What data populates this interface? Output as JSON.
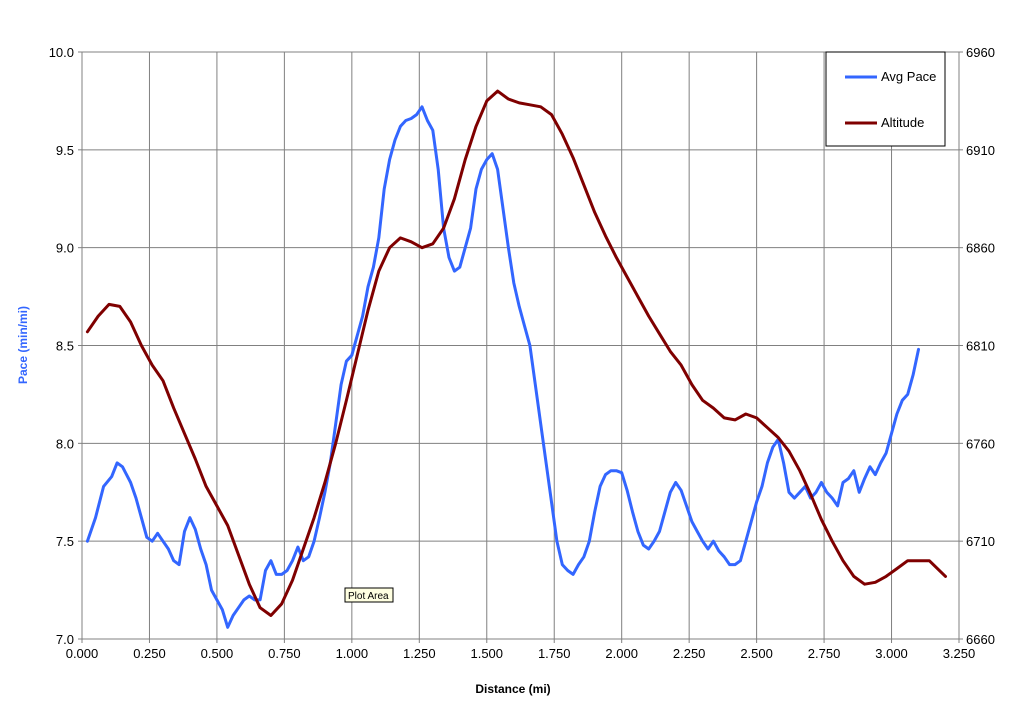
{
  "chart_data": {
    "type": "line",
    "xlabel": "Distance (mi)",
    "ylabel": "Pace (min/mi)",
    "y2label": "",
    "xlim": [
      0,
      3.25
    ],
    "ylim": [
      7.0,
      10.0
    ],
    "y2lim": [
      6660,
      6960
    ],
    "x_ticks": [
      "0.000",
      "0.250",
      "0.500",
      "0.750",
      "1.000",
      "1.250",
      "1.500",
      "1.750",
      "2.000",
      "2.250",
      "2.500",
      "2.750",
      "3.000",
      "3.250"
    ],
    "y_ticks": [
      "7.0",
      "7.5",
      "8.0",
      "8.5",
      "9.0",
      "9.5",
      "10.0"
    ],
    "y2_ticks": [
      "6660",
      "6710",
      "6760",
      "6810",
      "6860",
      "6910",
      "6960"
    ],
    "grid": true,
    "legend_position": "top-right",
    "tooltip": "Plot Area",
    "series": [
      {
        "name": "Avg Pace",
        "axis": "left",
        "color": "#3366ff",
        "points": [
          [
            0.02,
            7.5
          ],
          [
            0.05,
            7.62
          ],
          [
            0.08,
            7.78
          ],
          [
            0.11,
            7.83
          ],
          [
            0.13,
            7.9
          ],
          [
            0.15,
            7.88
          ],
          [
            0.18,
            7.8
          ],
          [
            0.2,
            7.72
          ],
          [
            0.22,
            7.62
          ],
          [
            0.24,
            7.52
          ],
          [
            0.26,
            7.5
          ],
          [
            0.28,
            7.54
          ],
          [
            0.3,
            7.5
          ],
          [
            0.32,
            7.46
          ],
          [
            0.34,
            7.4
          ],
          [
            0.36,
            7.38
          ],
          [
            0.38,
            7.55
          ],
          [
            0.4,
            7.62
          ],
          [
            0.42,
            7.56
          ],
          [
            0.44,
            7.46
          ],
          [
            0.46,
            7.38
          ],
          [
            0.48,
            7.25
          ],
          [
            0.5,
            7.2
          ],
          [
            0.52,
            7.15
          ],
          [
            0.54,
            7.06
          ],
          [
            0.56,
            7.12
          ],
          [
            0.58,
            7.16
          ],
          [
            0.6,
            7.2
          ],
          [
            0.62,
            7.22
          ],
          [
            0.64,
            7.2
          ],
          [
            0.66,
            7.2
          ],
          [
            0.68,
            7.35
          ],
          [
            0.7,
            7.4
          ],
          [
            0.72,
            7.33
          ],
          [
            0.74,
            7.33
          ],
          [
            0.76,
            7.35
          ],
          [
            0.78,
            7.4
          ],
          [
            0.8,
            7.47
          ],
          [
            0.82,
            7.4
          ],
          [
            0.84,
            7.42
          ],
          [
            0.86,
            7.5
          ],
          [
            0.88,
            7.62
          ],
          [
            0.9,
            7.75
          ],
          [
            0.92,
            7.9
          ],
          [
            0.94,
            8.1
          ],
          [
            0.96,
            8.3
          ],
          [
            0.98,
            8.42
          ],
          [
            1.0,
            8.45
          ],
          [
            1.02,
            8.55
          ],
          [
            1.04,
            8.65
          ],
          [
            1.06,
            8.8
          ],
          [
            1.08,
            8.9
          ],
          [
            1.1,
            9.05
          ],
          [
            1.12,
            9.3
          ],
          [
            1.14,
            9.45
          ],
          [
            1.16,
            9.55
          ],
          [
            1.18,
            9.62
          ],
          [
            1.2,
            9.65
          ],
          [
            1.22,
            9.66
          ],
          [
            1.24,
            9.68
          ],
          [
            1.26,
            9.72
          ],
          [
            1.28,
            9.65
          ],
          [
            1.3,
            9.6
          ],
          [
            1.32,
            9.4
          ],
          [
            1.34,
            9.1
          ],
          [
            1.36,
            8.95
          ],
          [
            1.38,
            8.88
          ],
          [
            1.4,
            8.9
          ],
          [
            1.42,
            9.0
          ],
          [
            1.44,
            9.1
          ],
          [
            1.46,
            9.3
          ],
          [
            1.48,
            9.4
          ],
          [
            1.5,
            9.45
          ],
          [
            1.52,
            9.48
          ],
          [
            1.54,
            9.4
          ],
          [
            1.56,
            9.2
          ],
          [
            1.58,
            9.0
          ],
          [
            1.6,
            8.82
          ],
          [
            1.62,
            8.7
          ],
          [
            1.64,
            8.6
          ],
          [
            1.66,
            8.5
          ],
          [
            1.68,
            8.3
          ],
          [
            1.7,
            8.1
          ],
          [
            1.72,
            7.9
          ],
          [
            1.74,
            7.7
          ],
          [
            1.76,
            7.5
          ],
          [
            1.78,
            7.38
          ],
          [
            1.8,
            7.35
          ],
          [
            1.82,
            7.33
          ],
          [
            1.84,
            7.38
          ],
          [
            1.86,
            7.42
          ],
          [
            1.88,
            7.5
          ],
          [
            1.9,
            7.65
          ],
          [
            1.92,
            7.78
          ],
          [
            1.94,
            7.84
          ],
          [
            1.96,
            7.86
          ],
          [
            1.98,
            7.86
          ],
          [
            2.0,
            7.85
          ],
          [
            2.02,
            7.76
          ],
          [
            2.04,
            7.65
          ],
          [
            2.06,
            7.55
          ],
          [
            2.08,
            7.48
          ],
          [
            2.1,
            7.46
          ],
          [
            2.12,
            7.5
          ],
          [
            2.14,
            7.55
          ],
          [
            2.16,
            7.65
          ],
          [
            2.18,
            7.75
          ],
          [
            2.2,
            7.8
          ],
          [
            2.22,
            7.76
          ],
          [
            2.24,
            7.68
          ],
          [
            2.26,
            7.6
          ],
          [
            2.28,
            7.55
          ],
          [
            2.3,
            7.5
          ],
          [
            2.32,
            7.46
          ],
          [
            2.34,
            7.5
          ],
          [
            2.36,
            7.45
          ],
          [
            2.38,
            7.42
          ],
          [
            2.4,
            7.38
          ],
          [
            2.42,
            7.38
          ],
          [
            2.44,
            7.4
          ],
          [
            2.46,
            7.5
          ],
          [
            2.48,
            7.6
          ],
          [
            2.5,
            7.7
          ],
          [
            2.52,
            7.78
          ],
          [
            2.54,
            7.9
          ],
          [
            2.56,
            7.98
          ],
          [
            2.58,
            8.02
          ],
          [
            2.6,
            7.9
          ],
          [
            2.62,
            7.75
          ],
          [
            2.64,
            7.72
          ],
          [
            2.66,
            7.75
          ],
          [
            2.68,
            7.78
          ],
          [
            2.7,
            7.72
          ],
          [
            2.72,
            7.75
          ],
          [
            2.74,
            7.8
          ],
          [
            2.76,
            7.75
          ],
          [
            2.78,
            7.72
          ],
          [
            2.8,
            7.68
          ],
          [
            2.82,
            7.8
          ],
          [
            2.84,
            7.82
          ],
          [
            2.86,
            7.86
          ],
          [
            2.88,
            7.75
          ],
          [
            2.9,
            7.82
          ],
          [
            2.92,
            7.88
          ],
          [
            2.94,
            7.84
          ],
          [
            2.96,
            7.9
          ],
          [
            2.98,
            7.95
          ],
          [
            3.0,
            8.05
          ],
          [
            3.02,
            8.15
          ],
          [
            3.04,
            8.22
          ],
          [
            3.06,
            8.25
          ],
          [
            3.08,
            8.35
          ],
          [
            3.1,
            8.48
          ]
        ]
      },
      {
        "name": "Altitude",
        "axis": "right",
        "color": "#7f0000",
        "points": [
          [
            0.02,
            6817
          ],
          [
            0.06,
            6825
          ],
          [
            0.1,
            6831
          ],
          [
            0.14,
            6830
          ],
          [
            0.18,
            6822
          ],
          [
            0.22,
            6810
          ],
          [
            0.26,
            6800
          ],
          [
            0.3,
            6792
          ],
          [
            0.34,
            6778
          ],
          [
            0.38,
            6765
          ],
          [
            0.42,
            6752
          ],
          [
            0.46,
            6738
          ],
          [
            0.5,
            6728
          ],
          [
            0.54,
            6718
          ],
          [
            0.58,
            6703
          ],
          [
            0.62,
            6688
          ],
          [
            0.66,
            6676
          ],
          [
            0.7,
            6672
          ],
          [
            0.74,
            6678
          ],
          [
            0.78,
            6690
          ],
          [
            0.82,
            6706
          ],
          [
            0.86,
            6722
          ],
          [
            0.9,
            6740
          ],
          [
            0.94,
            6760
          ],
          [
            0.98,
            6782
          ],
          [
            1.02,
            6805
          ],
          [
            1.06,
            6828
          ],
          [
            1.1,
            6848
          ],
          [
            1.14,
            6860
          ],
          [
            1.18,
            6865
          ],
          [
            1.22,
            6863
          ],
          [
            1.26,
            6860
          ],
          [
            1.3,
            6862
          ],
          [
            1.34,
            6870
          ],
          [
            1.38,
            6885
          ],
          [
            1.42,
            6905
          ],
          [
            1.46,
            6922
          ],
          [
            1.5,
            6935
          ],
          [
            1.54,
            6940
          ],
          [
            1.58,
            6936
          ],
          [
            1.62,
            6934
          ],
          [
            1.66,
            6933
          ],
          [
            1.7,
            6932
          ],
          [
            1.74,
            6928
          ],
          [
            1.78,
            6918
          ],
          [
            1.82,
            6906
          ],
          [
            1.86,
            6892
          ],
          [
            1.9,
            6878
          ],
          [
            1.94,
            6866
          ],
          [
            1.98,
            6855
          ],
          [
            2.02,
            6845
          ],
          [
            2.06,
            6835
          ],
          [
            2.1,
            6825
          ],
          [
            2.14,
            6816
          ],
          [
            2.18,
            6807
          ],
          [
            2.22,
            6800
          ],
          [
            2.26,
            6790
          ],
          [
            2.3,
            6782
          ],
          [
            2.34,
            6778
          ],
          [
            2.38,
            6773
          ],
          [
            2.42,
            6772
          ],
          [
            2.46,
            6775
          ],
          [
            2.5,
            6773
          ],
          [
            2.54,
            6768
          ],
          [
            2.58,
            6763
          ],
          [
            2.62,
            6756
          ],
          [
            2.66,
            6746
          ],
          [
            2.7,
            6734
          ],
          [
            2.74,
            6721
          ],
          [
            2.78,
            6710
          ],
          [
            2.82,
            6700
          ],
          [
            2.86,
            6692
          ],
          [
            2.9,
            6688
          ],
          [
            2.94,
            6689
          ],
          [
            2.98,
            6692
          ],
          [
            3.02,
            6696
          ],
          [
            3.06,
            6700
          ],
          [
            3.1,
            6700
          ],
          [
            3.14,
            6700
          ],
          [
            3.17,
            6696
          ],
          [
            3.2,
            6692
          ]
        ]
      }
    ]
  }
}
